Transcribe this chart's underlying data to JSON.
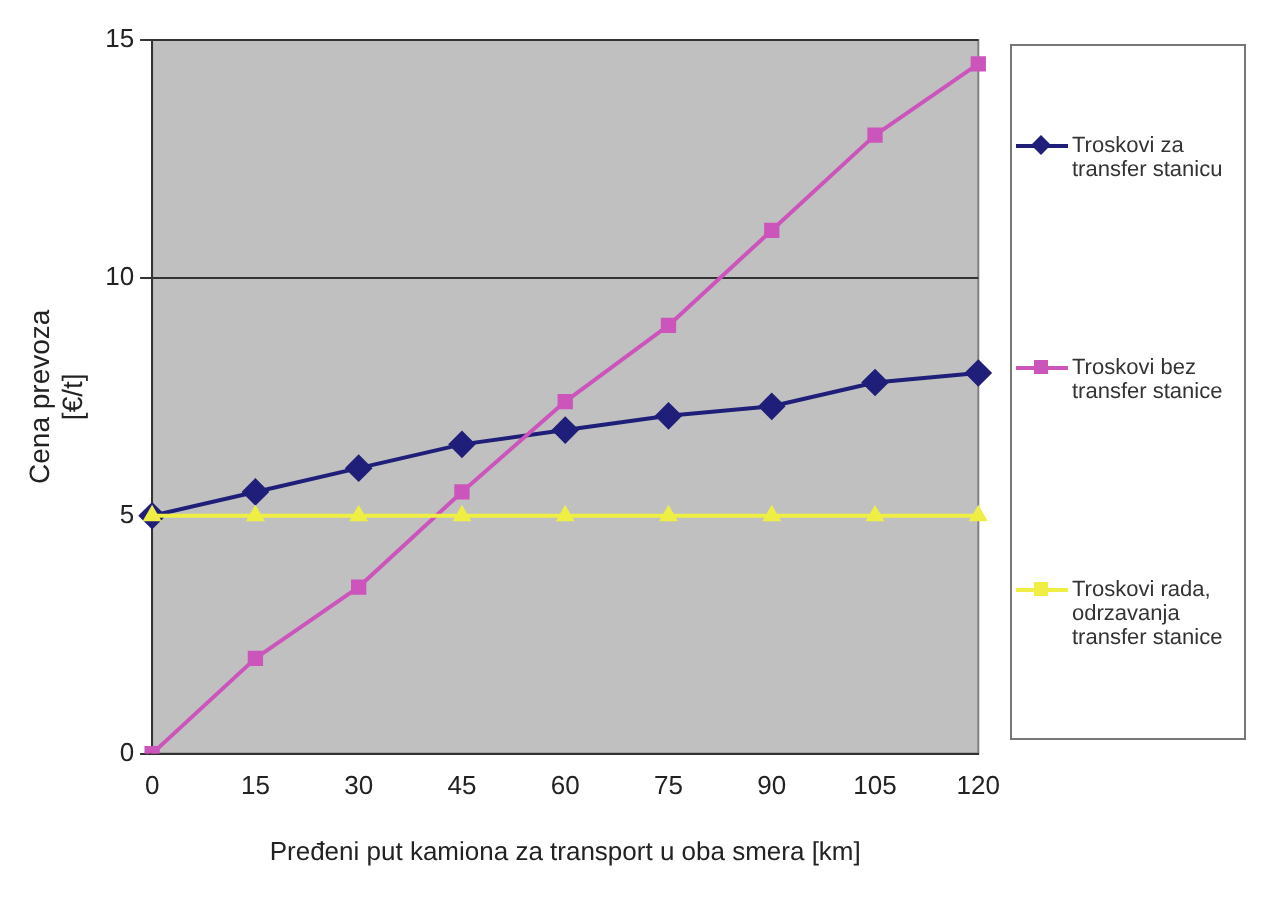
{
  "chart_data": {
    "type": "line",
    "xlabel": "Pređeni put kamiona za transport u oba smera [km]",
    "ylabel": "Cena prevoza\n[€/t]",
    "categories": [
      "0",
      "15",
      "30",
      "45",
      "60",
      "75",
      "90",
      "105",
      "120"
    ],
    "series": [
      {
        "name": "Troskovi za transfer stanicu",
        "color": "#1f1f7a",
        "marker": "diamond",
        "values": [
          5,
          5.5,
          6,
          6.5,
          6.8,
          7.1,
          7.3,
          7.8,
          8
        ]
      },
      {
        "name": "Troskovi bez transfer stanice",
        "color": "#cc55bb",
        "marker": "square",
        "values": [
          0,
          2,
          3.5,
          5.5,
          7.4,
          9,
          11,
          13,
          14.5
        ]
      },
      {
        "name": "Troskovi rada, odrzavanja transfer stanice",
        "color": "#eeee44",
        "marker": "triangle",
        "values": [
          5,
          5,
          5,
          5,
          5,
          5,
          5,
          5,
          5
        ]
      }
    ],
    "ylim": [
      0,
      15
    ],
    "yticks": [
      0,
      5,
      10,
      15
    ],
    "grid": "y",
    "legend": "right"
  }
}
